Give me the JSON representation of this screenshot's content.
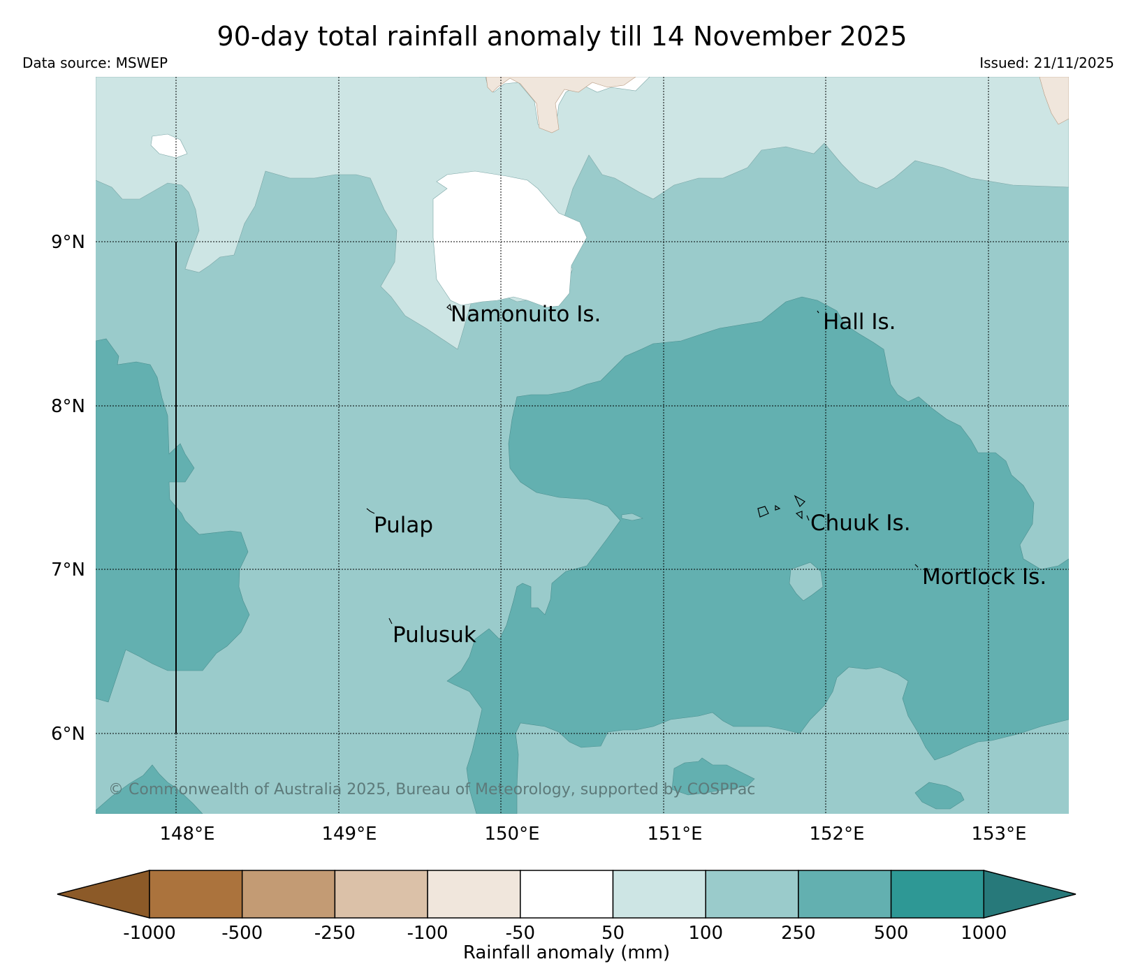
{
  "title": "90-day total rainfall anomaly till 14 November 2025",
  "source": "Data source: MSWEP",
  "issued": "Issued: 21/11/2025",
  "copyright": "© Commonwealth of Australia 2025, Bureau of Meteorology, supported by COSPPac",
  "map": {
    "lon_labels": [
      "148°E",
      "149°E",
      "150°E",
      "151°E",
      "152°E",
      "153°E"
    ],
    "lat_labels": [
      "9°N",
      "8°N",
      "7°N",
      "6°N"
    ],
    "places": [
      "Namonuito Is.",
      "Hall Is.",
      "Pulap",
      "Chuuk Is.",
      "Mortlock Is.",
      "Pulusuk"
    ]
  },
  "colorbar": {
    "label": "Rainfall anomaly (mm)",
    "ticks": [
      "-1000",
      "-500",
      "-250",
      "-100",
      "-50",
      "50",
      "100",
      "250",
      "500",
      "1000"
    ],
    "colors": [
      "#8c5a28",
      "#ab733d",
      "#c39b74",
      "#dbc1a8",
      "#f0e6dc",
      "#ffffff",
      "#cde5e4",
      "#9acbcb",
      "#63b0b0",
      "#2e9895",
      "#27797a"
    ]
  }
}
